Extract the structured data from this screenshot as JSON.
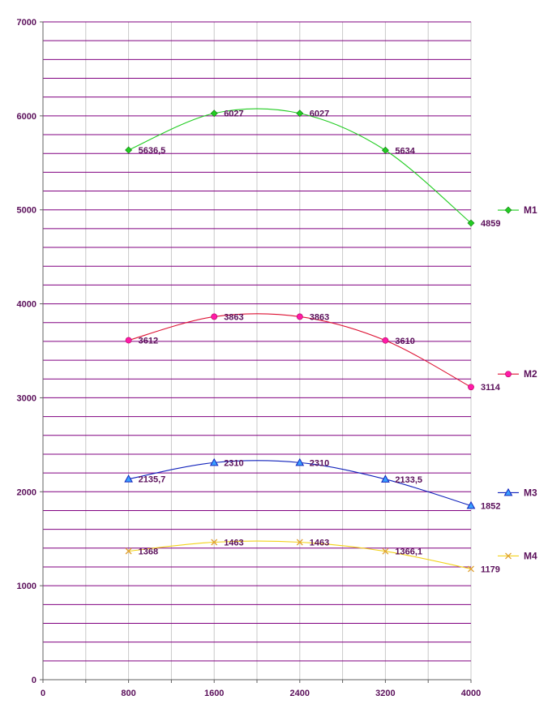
{
  "chart_data": {
    "type": "line",
    "title": "",
    "xlabel": "",
    "ylabel": "",
    "x": [
      800,
      1600,
      2400,
      3200,
      4000
    ],
    "xlim": [
      0,
      4000
    ],
    "ylim": [
      0,
      7000
    ],
    "x_ticks": [
      "0",
      "800",
      "1600",
      "2400",
      "3200",
      "4000"
    ],
    "y_ticks": [
      "0",
      "1000",
      "2000",
      "3000",
      "4000",
      "5000",
      "6000",
      "7000"
    ],
    "grid": true,
    "legend_position": "right",
    "series": [
      {
        "name": "M1",
        "color": "#22cc22",
        "marker": "diamond",
        "values": [
          5636.5,
          6027,
          6027,
          5634,
          4859
        ],
        "labels": [
          "5636,5",
          "6027",
          "6027",
          "5634",
          "4859"
        ]
      },
      {
        "name": "M2",
        "color": "#dd1133",
        "marker": "circle",
        "values": [
          3612,
          3863,
          3863,
          3610,
          3114
        ],
        "labels": [
          "3612",
          "3863",
          "3863",
          "3610",
          "3114"
        ]
      },
      {
        "name": "M3",
        "color": "#1122bb",
        "marker": "triangle",
        "values": [
          2135.7,
          2310,
          2310,
          2133.5,
          1852
        ],
        "labels": [
          "2135,7",
          "2310",
          "2310",
          "2133,5",
          "1852"
        ]
      },
      {
        "name": "M4",
        "color": "#f2d21a",
        "marker": "cross",
        "values": [
          1368,
          1463,
          1463,
          1366.1,
          1179
        ],
        "labels": [
          "1368",
          "1463",
          "1463",
          "1366,1",
          "1179"
        ]
      }
    ]
  }
}
